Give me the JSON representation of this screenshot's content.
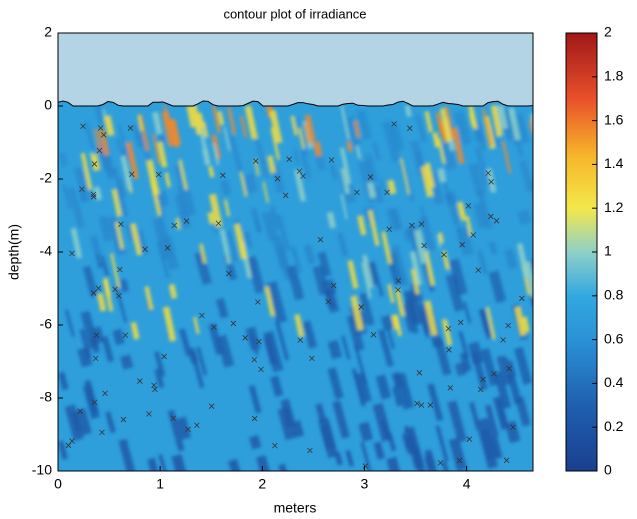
{
  "chart_data": {
    "type": "contour",
    "title": "contour plot of irradiance",
    "xlabel": "meters",
    "ylabel": "depth(m)",
    "xlim": [
      0,
      4.65
    ],
    "xticks": [
      0,
      1,
      2,
      3,
      4
    ],
    "ylim": [
      -10,
      2
    ],
    "yticks": [
      -10,
      -8,
      -6,
      -4,
      -2,
      0,
      2
    ],
    "colormap": "jet",
    "clim": [
      0,
      2
    ],
    "cticks": [
      0,
      0.2,
      0.4,
      0.6,
      0.8,
      1,
      1.2,
      1.4,
      1.6,
      1.8,
      2
    ]
  }
}
